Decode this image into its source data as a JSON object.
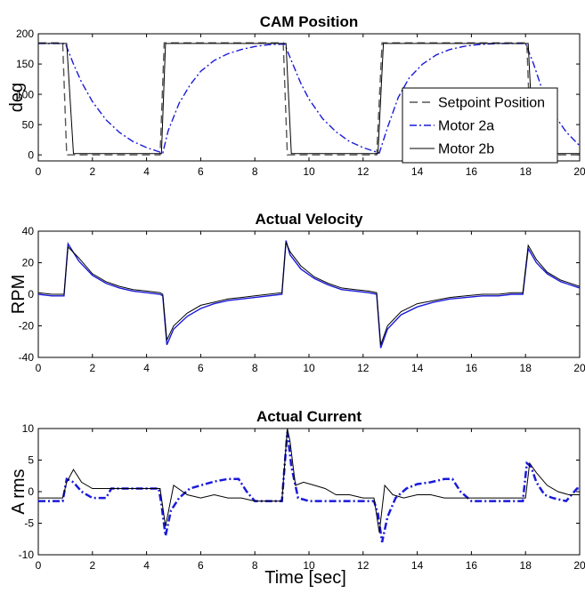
{
  "figure": {
    "xlabel": "Time [sec]"
  },
  "chart_data": [
    {
      "type": "line",
      "title": "CAM Position",
      "xlabel": "",
      "ylabel": "deg",
      "xlim": [
        0,
        20
      ],
      "ylim": [
        -10,
        200
      ],
      "xticks": [
        0,
        2,
        4,
        6,
        8,
        10,
        12,
        14,
        16,
        18,
        20
      ],
      "yticks": [
        0,
        50,
        100,
        150,
        200
      ],
      "grid": false,
      "legend": "right",
      "series": [
        {
          "name": "Setpoint Position",
          "style": "dashed",
          "color": "#555555",
          "x": [
            0,
            0.9,
            1.05,
            4.5,
            4.65,
            9.05,
            9.2,
            12.5,
            12.7,
            18.05,
            18.2,
            20
          ],
          "y": [
            185,
            185,
            0,
            0,
            185,
            185,
            0,
            0,
            185,
            185,
            0,
            0
          ]
        },
        {
          "name": "Motor 2a",
          "style": "dashdot",
          "color": "#1a1adb",
          "x": [
            0,
            1.0,
            1.3,
            1.6,
            2.0,
            2.5,
            3.0,
            3.5,
            4.0,
            4.6,
            4.8,
            5.2,
            5.6,
            6.0,
            6.5,
            7.0,
            7.5,
            8.0,
            8.5,
            9.1,
            9.4,
            9.7,
            10.0,
            10.5,
            11.0,
            11.5,
            12.0,
            12.6,
            12.9,
            13.3,
            13.7,
            14.2,
            14.7,
            15.2,
            15.7,
            16.2,
            17.0,
            18.0,
            18.3,
            18.6,
            19.0,
            19.5,
            20.0
          ],
          "y": [
            184,
            184,
            150,
            120,
            88,
            58,
            37,
            22,
            12,
            3,
            40,
            85,
            115,
            138,
            156,
            167,
            174,
            179,
            182,
            183,
            150,
            118,
            92,
            60,
            38,
            22,
            12,
            3,
            45,
            95,
            127,
            150,
            165,
            174,
            179,
            182,
            184,
            184,
            150,
            110,
            70,
            38,
            15
          ]
        },
        {
          "name": "Motor 2b",
          "style": "solid",
          "color": "#000000",
          "x": [
            0,
            1.05,
            1.3,
            4.55,
            4.7,
            9.15,
            9.35,
            12.55,
            12.75,
            18.1,
            18.3,
            20
          ],
          "y": [
            184,
            184,
            2,
            2,
            184,
            184,
            2,
            2,
            184,
            184,
            2,
            2
          ]
        }
      ]
    },
    {
      "type": "line",
      "title": "Actual Velocity",
      "xlabel": "",
      "ylabel": "RPM",
      "xlim": [
        0,
        20
      ],
      "ylim": [
        -40,
        40
      ],
      "xticks": [
        0,
        2,
        4,
        6,
        8,
        10,
        12,
        14,
        16,
        18,
        20
      ],
      "yticks": [
        -40,
        -20,
        0,
        20,
        40
      ],
      "grid": false,
      "series": [
        {
          "name": "Motor 2a",
          "color": "#1a1adb",
          "x": [
            0,
            0.5,
            0.95,
            1.1,
            1.5,
            2.0,
            2.5,
            3.0,
            3.5,
            4.0,
            4.5,
            4.6,
            4.75,
            5.0,
            5.5,
            6.0,
            6.5,
            7.0,
            7.5,
            8.0,
            8.5,
            9.0,
            9.15,
            9.3,
            9.7,
            10.2,
            10.7,
            11.2,
            11.7,
            12.2,
            12.5,
            12.65,
            12.9,
            13.4,
            14.0,
            14.6,
            15.2,
            15.8,
            16.4,
            17.0,
            17.5,
            17.9,
            18.1,
            18.4,
            18.8,
            19.3,
            20.0
          ],
          "y": [
            0,
            -1,
            -1,
            32,
            21,
            12,
            7,
            4,
            2,
            1,
            0,
            -1,
            -32,
            -22,
            -14,
            -9,
            -6,
            -4,
            -3,
            -2,
            -1,
            0,
            34,
            25,
            16,
            10,
            6,
            3,
            2,
            1,
            0,
            -34,
            -22,
            -13,
            -8,
            -5,
            -3,
            -2,
            -1,
            -1,
            0,
            0,
            29,
            20,
            13,
            8,
            4
          ]
        },
        {
          "name": "Motor 2b",
          "color": "#000000",
          "x": [
            0,
            0.5,
            0.95,
            1.1,
            1.5,
            2.0,
            2.5,
            3.0,
            3.5,
            4.0,
            4.5,
            4.6,
            4.75,
            5.0,
            5.5,
            6.0,
            6.5,
            7.0,
            7.5,
            8.0,
            8.5,
            9.0,
            9.15,
            9.3,
            9.7,
            10.2,
            10.7,
            11.2,
            11.7,
            12.2,
            12.5,
            12.65,
            12.9,
            13.4,
            14.0,
            14.6,
            15.2,
            15.8,
            16.4,
            17.0,
            17.5,
            17.9,
            18.1,
            18.4,
            18.8,
            19.3,
            20.0
          ],
          "y": [
            1,
            0,
            0,
            30,
            23,
            13,
            8,
            5,
            3,
            2,
            1,
            0,
            -29,
            -20,
            -12,
            -7,
            -5,
            -3,
            -2,
            -1,
            0,
            1,
            33,
            27,
            18,
            11,
            7,
            4,
            3,
            2,
            1,
            -32,
            -20,
            -11,
            -6,
            -4,
            -2,
            -1,
            0,
            0,
            1,
            1,
            31,
            22,
            14,
            9,
            5
          ]
        }
      ]
    },
    {
      "type": "line",
      "title": "Actual Current",
      "xlabel": "Time [sec]",
      "ylabel": "A rms",
      "xlim": [
        0,
        20
      ],
      "ylim": [
        -10,
        10
      ],
      "xticks": [
        0,
        2,
        4,
        6,
        8,
        10,
        12,
        14,
        16,
        18,
        20
      ],
      "yticks": [
        -10,
        -5,
        0,
        5,
        10
      ],
      "grid": false,
      "series": [
        {
          "name": "Motor 2a",
          "style": "dashdot",
          "color": "#1a1adb",
          "x": [
            0,
            0.9,
            1.05,
            1.3,
            1.6,
            2.0,
            2.5,
            2.7,
            3.0,
            3.5,
            4.0,
            4.45,
            4.55,
            4.7,
            4.9,
            5.2,
            5.6,
            6.0,
            6.5,
            7.0,
            7.4,
            7.7,
            8.0,
            8.5,
            9.0,
            9.1,
            9.2,
            9.35,
            9.6,
            10.0,
            10.5,
            11.0,
            11.5,
            12.0,
            12.4,
            12.55,
            12.7,
            12.9,
            13.2,
            13.6,
            14.0,
            14.5,
            15.0,
            15.3,
            15.6,
            16.0,
            16.5,
            17.0,
            17.5,
            17.9,
            18.05,
            18.2,
            18.4,
            18.7,
            19.0,
            19.5,
            19.9,
            20.0
          ],
          "y": [
            -1.5,
            -1.5,
            2.0,
            1.5,
            0,
            -1.0,
            -1.0,
            0.5,
            0.5,
            0.5,
            0.5,
            0.5,
            -2.0,
            -7.0,
            -3.0,
            -1.0,
            0.5,
            1.0,
            1.6,
            2.0,
            2.0,
            0,
            -1.5,
            -1.5,
            -1.5,
            4.0,
            9.5,
            4.0,
            -1.0,
            -1.5,
            -1.5,
            -1.5,
            -1.5,
            -1.5,
            -1.5,
            -3.5,
            -8.0,
            -4.0,
            -1.0,
            0.5,
            1.2,
            1.5,
            2.0,
            2.0,
            0,
            -1.5,
            -1.5,
            -1.5,
            -1.5,
            -1.5,
            4.5,
            4.0,
            1.5,
            -0.5,
            -1.0,
            -1.5,
            0.5,
            0.5
          ]
        },
        {
          "name": "Motor 2b",
          "color": "#000000",
          "x": [
            0,
            0.9,
            1.05,
            1.3,
            1.6,
            2.0,
            2.5,
            3.0,
            3.5,
            4.0,
            4.5,
            4.7,
            5.0,
            5.5,
            6.0,
            6.5,
            7.0,
            7.5,
            8.0,
            8.5,
            9.0,
            9.2,
            9.3,
            9.5,
            9.8,
            10.2,
            10.6,
            11.0,
            11.5,
            12.0,
            12.4,
            12.6,
            12.8,
            13.1,
            13.5,
            14.0,
            14.5,
            15.0,
            15.5,
            16.0,
            16.5,
            17.0,
            17.5,
            18.0,
            18.15,
            18.4,
            18.8,
            19.2,
            19.6,
            20.0
          ],
          "y": [
            -1,
            -1,
            1.5,
            3.5,
            1.5,
            0.5,
            0.5,
            0.5,
            0.5,
            0.5,
            0.5,
            -5.5,
            1.0,
            -0.5,
            -1.0,
            -0.5,
            -1.0,
            -1.0,
            -1.5,
            -1.5,
            -1.5,
            10.0,
            8.0,
            1.0,
            1.5,
            1.0,
            0.5,
            -0.5,
            -0.5,
            -1.0,
            -1.0,
            -6.5,
            1.0,
            -0.5,
            -1.0,
            -0.5,
            -0.5,
            -1.0,
            -1.0,
            -1.0,
            -1.0,
            -1.0,
            -1.0,
            -1.0,
            4.5,
            3.0,
            1.0,
            0,
            -0.5,
            -0.5
          ]
        }
      ]
    }
  ]
}
